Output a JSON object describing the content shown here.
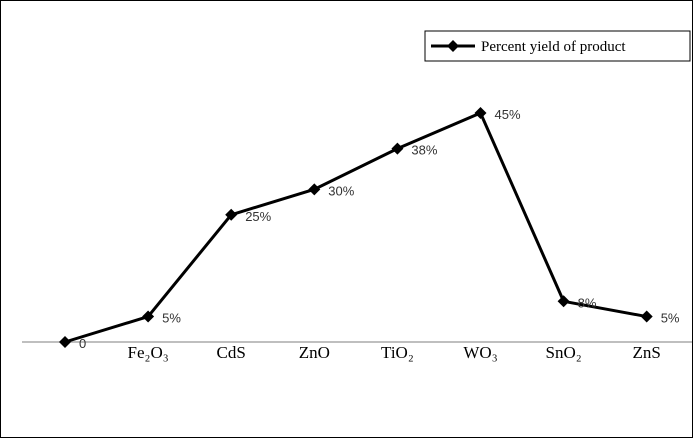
{
  "chart_data": {
    "type": "line",
    "categories": [
      null,
      "Fe₂O₃",
      "CdS",
      "ZnO",
      "TiO₂",
      "WO₃",
      "SnO₂",
      "ZnS"
    ],
    "series": [
      {
        "name": "Percent yield of product",
        "color": "#000000",
        "values": [
          0,
          5,
          25,
          30,
          38,
          45,
          8,
          5
        ],
        "value_labels": [
          "0",
          "5%",
          "25%",
          "30%",
          "38%",
          "45%",
          "8%",
          "5%"
        ]
      }
    ],
    "legend": "top-right"
  }
}
